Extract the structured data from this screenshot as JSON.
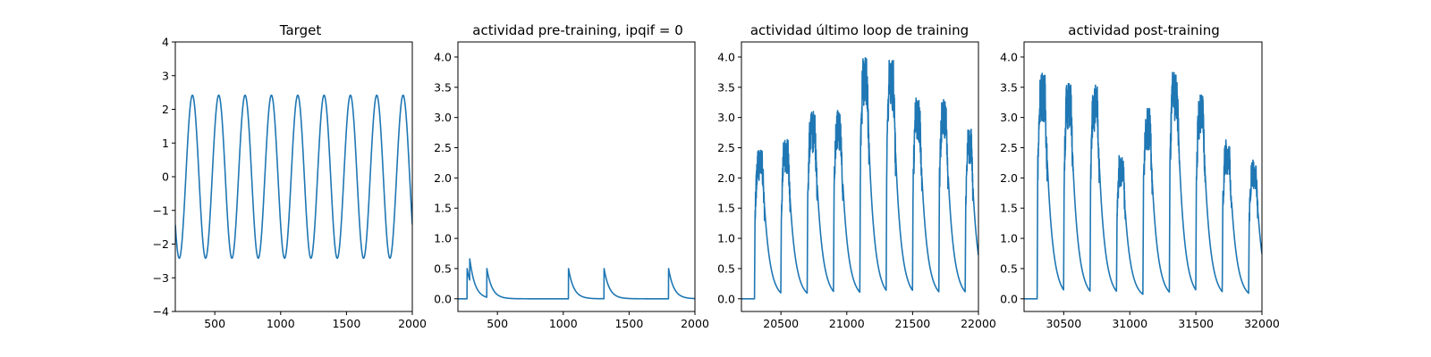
{
  "figure": {
    "background": "#ffffff",
    "line_color": "#1f77b4"
  },
  "chart_data": [
    {
      "type": "line",
      "title": "Target",
      "xlim": [
        200,
        2000
      ],
      "ylim": [
        -4,
        4
      ],
      "xticks": [
        500,
        1000,
        1500,
        2000
      ],
      "yticks": [
        -4,
        -3,
        -2,
        -1,
        0,
        1,
        2,
        3,
        4
      ],
      "series": [
        {
          "kind": "sine",
          "amplitude": 2.42,
          "period": 200,
          "peaks_x": [
            330,
            530,
            730,
            930,
            1130,
            1330,
            1530,
            1730,
            1930
          ],
          "troughs_x": [
            230,
            430,
            630,
            830,
            1030,
            1230,
            1430,
            1630,
            1830
          ],
          "x_end": 2000,
          "y_at_end": -0.9
        }
      ]
    },
    {
      "type": "line",
      "title": "actividad pre-training, ipqif = 0",
      "xlim": [
        200,
        2000
      ],
      "ylim": [
        -0.21,
        4.25
      ],
      "xticks": [
        500,
        1000,
        1500,
        2000
      ],
      "yticks": [
        0.0,
        0.5,
        1.0,
        1.5,
        2.0,
        2.5,
        3.0,
        3.5,
        4.0
      ],
      "series": [
        {
          "kind": "spikes",
          "baseline": 0,
          "decay": 40,
          "spikes": [
            {
              "x": 270,
              "y": 0.5
            },
            {
              "x": 290,
              "y": 0.66
            },
            {
              "x": 310,
              "y": 0.35
            },
            {
              "x": 420,
              "y": 0.5
            },
            {
              "x": 1040,
              "y": 0.5
            },
            {
              "x": 1310,
              "y": 0.5
            },
            {
              "x": 1800,
              "y": 0.5
            }
          ]
        }
      ]
    },
    {
      "type": "line",
      "title": "actividad último loop de training",
      "xlim": [
        20200,
        22000
      ],
      "ylim": [
        -0.21,
        4.25
      ],
      "xticks": [
        20500,
        21000,
        21500,
        22000
      ],
      "yticks": [
        0.0,
        0.5,
        1.0,
        1.5,
        2.0,
        2.5,
        3.0,
        3.5,
        4.0
      ],
      "series": [
        {
          "kind": "bursts",
          "baseline": 0,
          "decay": 45,
          "bursts": [
            {
              "start": 20300,
              "end": 20375,
              "peak": 2.5
            },
            {
              "start": 20500,
              "end": 20570,
              "peak": 2.65
            },
            {
              "start": 20700,
              "end": 20775,
              "peak": 3.1
            },
            {
              "start": 20900,
              "end": 20970,
              "peak": 3.12
            },
            {
              "start": 21100,
              "end": 21170,
              "peak": 4.0
            },
            {
              "start": 21300,
              "end": 21370,
              "peak": 3.98
            },
            {
              "start": 21500,
              "end": 21570,
              "peak": 3.32
            },
            {
              "start": 21700,
              "end": 21770,
              "peak": 3.32
            },
            {
              "start": 21900,
              "end": 21960,
              "peak": 2.83
            }
          ]
        }
      ]
    },
    {
      "type": "line",
      "title": "actividad post-training",
      "xlim": [
        30200,
        32000
      ],
      "ylim": [
        -0.21,
        4.25
      ],
      "xticks": [
        30500,
        31000,
        31500,
        32000
      ],
      "yticks": [
        0.0,
        0.5,
        1.0,
        1.5,
        2.0,
        2.5,
        3.0,
        3.5,
        4.0
      ],
      "series": [
        {
          "kind": "bursts",
          "baseline": 0,
          "decay": 45,
          "bursts": [
            {
              "start": 30300,
              "end": 30375,
              "peak": 3.75
            },
            {
              "start": 30500,
              "end": 30570,
              "peak": 3.6
            },
            {
              "start": 30700,
              "end": 30770,
              "peak": 3.55
            },
            {
              "start": 30900,
              "end": 30965,
              "peak": 2.38
            },
            {
              "start": 31100,
              "end": 31170,
              "peak": 3.15
            },
            {
              "start": 31300,
              "end": 31375,
              "peak": 3.77
            },
            {
              "start": 31500,
              "end": 31570,
              "peak": 3.38
            },
            {
              "start": 31700,
              "end": 31770,
              "peak": 2.63
            },
            {
              "start": 31900,
              "end": 31970,
              "peak": 2.33
            }
          ]
        }
      ]
    }
  ]
}
